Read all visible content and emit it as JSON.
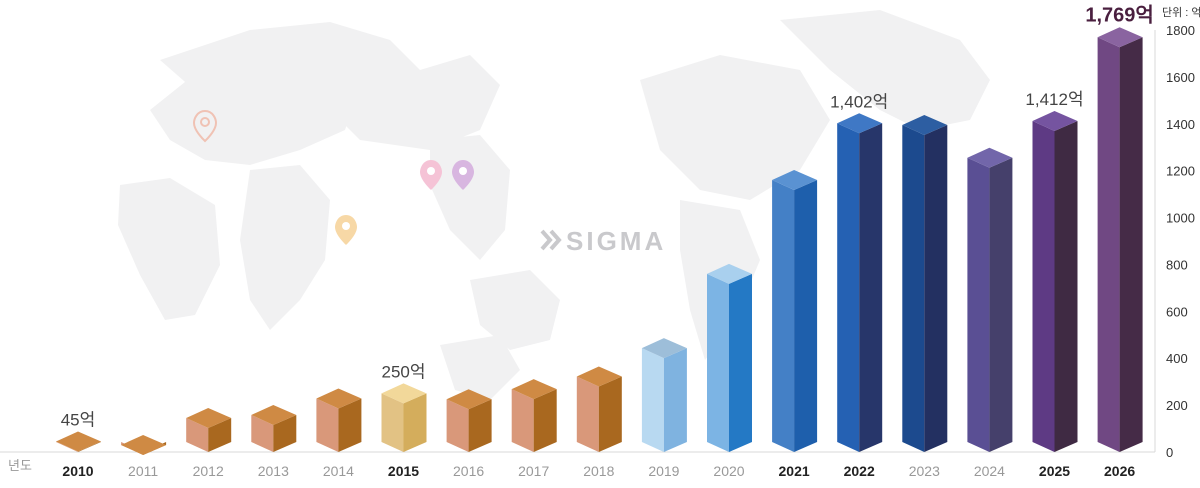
{
  "brand": {
    "logo_text": "SIGMA"
  },
  "chart_data": {
    "type": "bar",
    "xlabel": "년도",
    "unit_label": "단위 : 억",
    "ylim": [
      0,
      1800
    ],
    "yticks": [
      0,
      200,
      400,
      600,
      800,
      1000,
      1200,
      1400,
      1600,
      1800
    ],
    "grid": false,
    "categories": [
      "2010",
      "2011",
      "2012",
      "2013",
      "2014",
      "2015",
      "2016",
      "2017",
      "2018",
      "2019",
      "2020",
      "2021",
      "2022",
      "2023",
      "2024",
      "2025",
      "2026"
    ],
    "values": [
      45,
      30,
      145,
      158,
      228,
      250,
      225,
      268,
      322,
      443,
      760,
      1160,
      1402,
      1395,
      1255,
      1412,
      1769
    ],
    "bold_categories": [
      "2010",
      "2015",
      "2021",
      "2022",
      "2025",
      "2026"
    ],
    "data_labels": [
      {
        "index": 0,
        "text": "45억"
      },
      {
        "index": 5,
        "text": "250억"
      },
      {
        "index": 12,
        "text": "1,402억"
      },
      {
        "index": 15,
        "text": "1,412억"
      },
      {
        "index": 16,
        "text": "1,769억",
        "emphasis": true
      }
    ],
    "bar_colors": [
      {
        "front": "#d9987a",
        "side": "#a9681f",
        "top": "#cf8a44"
      },
      {
        "front": "#d9987a",
        "side": "#a9681f",
        "top": "#cf8a44"
      },
      {
        "front": "#d9987a",
        "side": "#a9681f",
        "top": "#cf8a44"
      },
      {
        "front": "#d9987a",
        "side": "#a9681f",
        "top": "#cf8a44"
      },
      {
        "front": "#d9987a",
        "side": "#a9681f",
        "top": "#cf8a44"
      },
      {
        "front": "#e2c284",
        "side": "#d4ad5c",
        "top": "#f2d89a"
      },
      {
        "front": "#d9987a",
        "side": "#a9681f",
        "top": "#cf8a44"
      },
      {
        "front": "#d9987a",
        "side": "#a9681f",
        "top": "#cf8a44"
      },
      {
        "front": "#d9987a",
        "side": "#a9681f",
        "top": "#cf8a44"
      },
      {
        "front": "#b8d9f1",
        "side": "#7fb3e0",
        "top": "#9dbed9"
      },
      {
        "front": "#7cb4e4",
        "side": "#2479c5",
        "top": "#a9d0ee"
      },
      {
        "front": "#4480c6",
        "side": "#1e5fac",
        "top": "#5a92d2"
      },
      {
        "front": "#2561b3",
        "side": "#27366a",
        "top": "#3f78c5"
      },
      {
        "front": "#1c4a8e",
        "side": "#233061",
        "top": "#2d5ea2"
      },
      {
        "front": "#5a4f94",
        "side": "#45406b",
        "top": "#7266aa"
      },
      {
        "front": "#5e3a84",
        "side": "#3f2a43",
        "top": "#7554a0"
      },
      {
        "front": "#704883",
        "side": "#452b47",
        "top": "#8a64a0"
      }
    ]
  }
}
